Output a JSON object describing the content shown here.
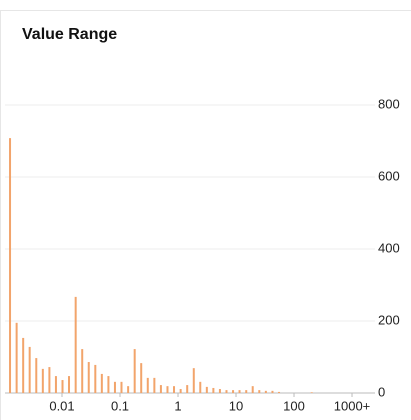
{
  "chart_data": {
    "type": "bar",
    "title": "Value Range",
    "x": [
      0.00127,
      0.00165,
      0.00214,
      0.00277,
      0.0036,
      0.00467,
      0.00606,
      0.00786,
      0.0102,
      0.0132,
      0.0172,
      0.0223,
      0.0289,
      0.0375,
      0.0486,
      0.0631,
      0.0818,
      0.106,
      0.138,
      0.179,
      0.232,
      0.301,
      0.391,
      0.507,
      0.658,
      0.853,
      1.11,
      1.44,
      1.87,
      2.42,
      3.14,
      4.07,
      5.28,
      6.85,
      8.89,
      11.5,
      15.0,
      19.4,
      25.2,
      32.7,
      42.5,
      55.1,
      202
    ],
    "values": [
      708,
      195,
      153,
      128,
      97,
      67,
      72,
      47,
      36,
      47,
      267,
      122,
      86,
      78,
      53,
      47,
      31,
      31,
      19,
      122,
      83,
      42,
      42,
      22,
      19,
      19,
      11,
      22,
      69,
      31,
      17,
      14,
      11,
      8,
      8,
      8,
      8,
      19,
      8,
      6,
      6,
      3,
      2
    ],
    "color": "#f2a46b",
    "log_x": true,
    "xlim": [
      0.00104,
      2490
    ],
    "xticks": [
      0.01,
      0.1,
      1,
      10,
      100,
      {
        "value": 1000,
        "label": "1000+"
      }
    ],
    "ylim": [
      0,
      800
    ],
    "yticks": [
      0,
      200,
      400,
      600,
      800
    ],
    "grid": true,
    "y_axis_side": "right"
  }
}
